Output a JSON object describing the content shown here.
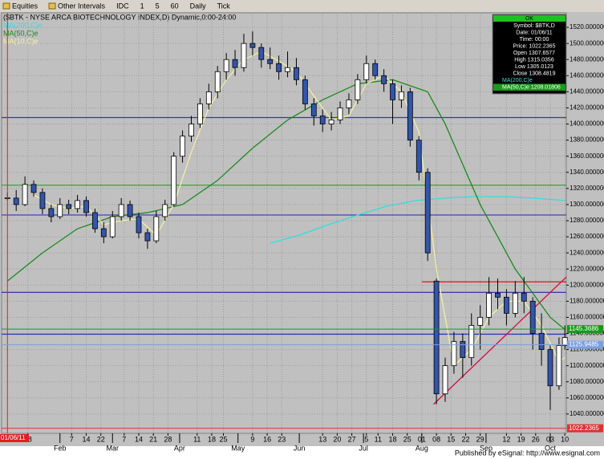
{
  "toolbar": [
    "Equities",
    "Other Intervals",
    "IDC",
    "1",
    "5",
    "60",
    "Daily",
    "Tick"
  ],
  "footer": "Published by eSignal: http://www.esignal.com",
  "chart_data": {
    "type": "candlestick",
    "title": "($BTK - NYSE ARCA BIOTECHNOLOGY INDEX,D) Dynamic,0:00-24:00",
    "up_color": "#ffffff",
    "down_color": "#3355aa",
    "x": [
      0,
      3,
      6,
      9,
      12,
      15,
      18,
      21,
      24,
      27,
      30,
      33,
      36,
      39,
      42,
      45,
      48,
      51,
      54,
      57,
      60,
      63,
      66,
      69,
      72,
      75,
      78,
      81,
      84,
      87,
      90,
      93,
      96,
      99,
      102,
      105,
      108,
      111,
      114,
      117,
      120,
      123,
      126,
      129,
      132,
      135,
      138,
      141,
      144,
      147,
      150,
      153,
      156,
      159,
      162,
      165,
      168,
      171,
      174,
      177,
      180,
      183,
      186,
      189,
      191
    ],
    "open": [
      1307.6577,
      1308,
      1300,
      1325,
      1315,
      1295,
      1285,
      1300,
      1295,
      1305,
      1290,
      1270,
      1260,
      1285,
      1300,
      1285,
      1265,
      1255,
      1285,
      1300,
      1360,
      1385,
      1400,
      1425,
      1440,
      1465,
      1480,
      1470,
      1500,
      1495,
      1480,
      1475,
      1465,
      1470,
      1455,
      1425,
      1410,
      1400,
      1405,
      1420,
      1430,
      1455,
      1475,
      1460,
      1450,
      1430,
      1440,
      1380,
      1340,
      1205,
      1065,
      1100,
      1130,
      1110,
      1150,
      1160,
      1190,
      1185,
      1165,
      1190,
      1180,
      1140,
      1120,
      1075,
      1125
    ],
    "high": [
      1315.0356,
      1318,
      1335,
      1330,
      1320,
      1300,
      1308,
      1306,
      1312,
      1310,
      1295,
      1278,
      1292,
      1308,
      1305,
      1290,
      1270,
      1292,
      1306,
      1365,
      1392,
      1410,
      1432,
      1450,
      1472,
      1488,
      1492,
      1512,
      1515,
      1500,
      1495,
      1485,
      1490,
      1482,
      1460,
      1432,
      1418,
      1415,
      1428,
      1438,
      1462,
      1485,
      1480,
      1468,
      1455,
      1448,
      1445,
      1385,
      1345,
      1208,
      1110,
      1142,
      1140,
      1165,
      1175,
      1210,
      1208,
      1195,
      1205,
      1210,
      1185,
      1165,
      1125,
      1135,
      1150
    ],
    "low": [
      1305.0123,
      1292,
      1298,
      1310,
      1288,
      1278,
      1282,
      1288,
      1290,
      1285,
      1265,
      1252,
      1258,
      1280,
      1280,
      1258,
      1245,
      1252,
      1280,
      1298,
      1352,
      1378,
      1395,
      1418,
      1432,
      1455,
      1460,
      1465,
      1485,
      1470,
      1468,
      1455,
      1458,
      1448,
      1418,
      1398,
      1390,
      1392,
      1400,
      1412,
      1425,
      1450,
      1455,
      1440,
      1400,
      1420,
      1372,
      1330,
      1230,
      1052,
      1055,
      1090,
      1085,
      1100,
      1120,
      1150,
      1170,
      1150,
      1160,
      1165,
      1120,
      1100,
      1045,
      1070,
      1120
    ],
    "close": [
      1308.4819,
      1300,
      1325,
      1315,
      1295,
      1285,
      1300,
      1295,
      1305,
      1290,
      1270,
      1260,
      1285,
      1300,
      1285,
      1265,
      1255,
      1285,
      1300,
      1360,
      1385,
      1400,
      1425,
      1440,
      1465,
      1480,
      1470,
      1500,
      1495,
      1480,
      1475,
      1465,
      1470,
      1455,
      1425,
      1410,
      1400,
      1405,
      1420,
      1430,
      1455,
      1475,
      1460,
      1450,
      1430,
      1440,
      1380,
      1340,
      1240,
      1065,
      1100,
      1130,
      1110,
      1150,
      1160,
      1190,
      1185,
      1165,
      1190,
      1180,
      1140,
      1120,
      1075,
      1125,
      1135
    ],
    "series": [
      {
        "name": "MA(200,C)e",
        "color": "#33dddd",
        "x": [
          90,
          100,
          110,
          120,
          130,
          140,
          150,
          160,
          170,
          180,
          191
        ],
        "values": [
          1252,
          1262,
          1275,
          1287,
          1298,
          1305,
          1308,
          1310,
          1310,
          1308,
          1305
        ]
      },
      {
        "name": "MA(50,C)e",
        "color": "#1a8a1a",
        "x": [
          0,
          12,
          24,
          36,
          48,
          60,
          72,
          84,
          96,
          108,
          120,
          132,
          144,
          150,
          156,
          162,
          168,
          174,
          180,
          186,
          191
        ],
        "values": [
          1205,
          1240,
          1270,
          1285,
          1290,
          1300,
          1330,
          1370,
          1405,
          1430,
          1450,
          1455,
          1440,
          1400,
          1350,
          1300,
          1260,
          1220,
          1190,
          1160,
          1145
        ]
      },
      {
        "name": "MA(10,C)e",
        "color": "#f0f0a0",
        "x": [
          9,
          15,
          21,
          27,
          33,
          39,
          45,
          51,
          57,
          63,
          69,
          75,
          81,
          87,
          93,
          99,
          105,
          111,
          117,
          123,
          129,
          135,
          141,
          147,
          153,
          159,
          165,
          171,
          177,
          183,
          189,
          191
        ],
        "values": [
          1312,
          1300,
          1295,
          1298,
          1275,
          1280,
          1282,
          1262,
          1300,
          1365,
          1420,
          1455,
          1480,
          1490,
          1478,
          1465,
          1435,
          1405,
          1410,
          1450,
          1460,
          1440,
          1390,
          1220,
          1100,
          1120,
          1160,
          1180,
          1180,
          1150,
          1105,
          1110
        ]
      }
    ],
    "levels": [
      {
        "value": 1408,
        "color": "#3535b5"
      },
      {
        "value": 1324,
        "color": "#2f9a2f"
      },
      {
        "value": 1287,
        "color": "#3535b5"
      },
      {
        "value": 1191,
        "color": "#2222aa"
      },
      {
        "value": 1139,
        "color": "#3535b5"
      }
    ],
    "resistance": {
      "value": 1204,
      "x_start": 142,
      "color": "#e01020"
    },
    "trendline": {
      "x": [
        146,
        191.5
      ],
      "y": [
        1052,
        1210
      ],
      "color": "#d0103a"
    },
    "cursor": {
      "x": 0,
      "label": "01/06/11",
      "color": "#e02020"
    },
    "price_labels": [
      {
        "value": 1145.3686,
        "color": "#1a9a1a"
      },
      {
        "value": 1125.9485,
        "color": "#7aa0e0"
      },
      {
        "value": 1022.2365,
        "color": "#e03030"
      }
    ],
    "info_box": {
      "status": "OK",
      "lines": [
        "Symbol: $BTK,D",
        "Date: 01/06/11",
        "Time: 00:00",
        "Price: 1022.2365",
        "Open 1307.6577",
        "High 1315.0356",
        "Low 1305.0123",
        "Close 1308.4819",
        "MA(200,C)e",
        "MA(50,C)e 1208.01806"
      ]
    },
    "xlim": [
      -2,
      191.5
    ],
    "ylim": [
      1016,
      1538
    ],
    "yticks": [
      {
        "value": 1040,
        "label": "1040.000000"
      },
      {
        "value": 1060,
        "label": "1060.000000"
      },
      {
        "value": 1080,
        "label": "1080.000000"
      },
      {
        "value": 1100,
        "label": "1100.000000"
      },
      {
        "value": 1120,
        "label": "1120.000000"
      },
      {
        "value": 1140,
        "label": "1140.000000"
      },
      {
        "value": 1160,
        "label": "1160.000000"
      },
      {
        "value": 1180,
        "label": "1180.000000"
      },
      {
        "value": 1200,
        "label": "1200.000000"
      },
      {
        "value": 1220,
        "label": "1220.000000"
      },
      {
        "value": 1240,
        "label": "1240.000000"
      },
      {
        "value": 1260,
        "label": "1260.000000"
      },
      {
        "value": 1280,
        "label": "1280.000000"
      },
      {
        "value": 1300,
        "label": "1300.000000"
      },
      {
        "value": 1320,
        "label": "1320.000000"
      },
      {
        "value": 1340,
        "label": "1340.000000"
      },
      {
        "value": 1360,
        "label": "1360.000000"
      },
      {
        "value": 1380,
        "label": "1380.000000"
      },
      {
        "value": 1400,
        "label": "1400.000000"
      },
      {
        "value": 1420,
        "label": "1420.000000"
      },
      {
        "value": 1440,
        "label": "1440.000000"
      },
      {
        "value": 1460,
        "label": "1460.000000"
      },
      {
        "value": 1480,
        "label": "1480.000000"
      },
      {
        "value": 1500,
        "label": "1500.000000"
      },
      {
        "value": 1520,
        "label": "1520.000000"
      }
    ],
    "xticks": [
      {
        "value": 7,
        "label": "18"
      },
      {
        "value": 22,
        "label": "7"
      },
      {
        "value": 27,
        "label": "14"
      },
      {
        "value": 32,
        "label": "22"
      },
      {
        "value": 40,
        "label": "7"
      },
      {
        "value": 45,
        "label": "14"
      },
      {
        "value": 50,
        "label": "21"
      },
      {
        "value": 55,
        "label": "28"
      },
      {
        "value": 65,
        "label": "11"
      },
      {
        "value": 70,
        "label": "18"
      },
      {
        "value": 74,
        "label": "25"
      },
      {
        "value": 84,
        "label": "9"
      },
      {
        "value": 89,
        "label": "16"
      },
      {
        "value": 94,
        "label": "23"
      },
      {
        "value": 108,
        "label": "13"
      },
      {
        "value": 113,
        "label": "20"
      },
      {
        "value": 118,
        "label": "27"
      },
      {
        "value": 123,
        "label": "5"
      },
      {
        "value": 127,
        "label": "11"
      },
      {
        "value": 132,
        "label": "18"
      },
      {
        "value": 137,
        "label": "25"
      },
      {
        "value": 142,
        "label": "01"
      },
      {
        "value": 147,
        "label": "08"
      },
      {
        "value": 152,
        "label": "15"
      },
      {
        "value": 157,
        "label": "22"
      },
      {
        "value": 162,
        "label": "29"
      },
      {
        "value": 171,
        "label": "12"
      },
      {
        "value": 176,
        "label": "19"
      },
      {
        "value": 181,
        "label": "26"
      },
      {
        "value": 186,
        "label": "03"
      },
      {
        "value": 191,
        "label": "10"
      }
    ],
    "month_ticks": [
      {
        "value": 18,
        "label": "Feb"
      },
      {
        "value": 36,
        "label": "Mar"
      },
      {
        "value": 59,
        "label": "Apr"
      },
      {
        "value": 79,
        "label": "May"
      },
      {
        "value": 100,
        "label": "Jun"
      },
      {
        "value": 122,
        "label": "Jul"
      },
      {
        "value": 142,
        "label": "Aug"
      },
      {
        "value": 164,
        "label": "Sep"
      },
      {
        "value": 186,
        "label": "Oct"
      }
    ],
    "grid": true
  }
}
